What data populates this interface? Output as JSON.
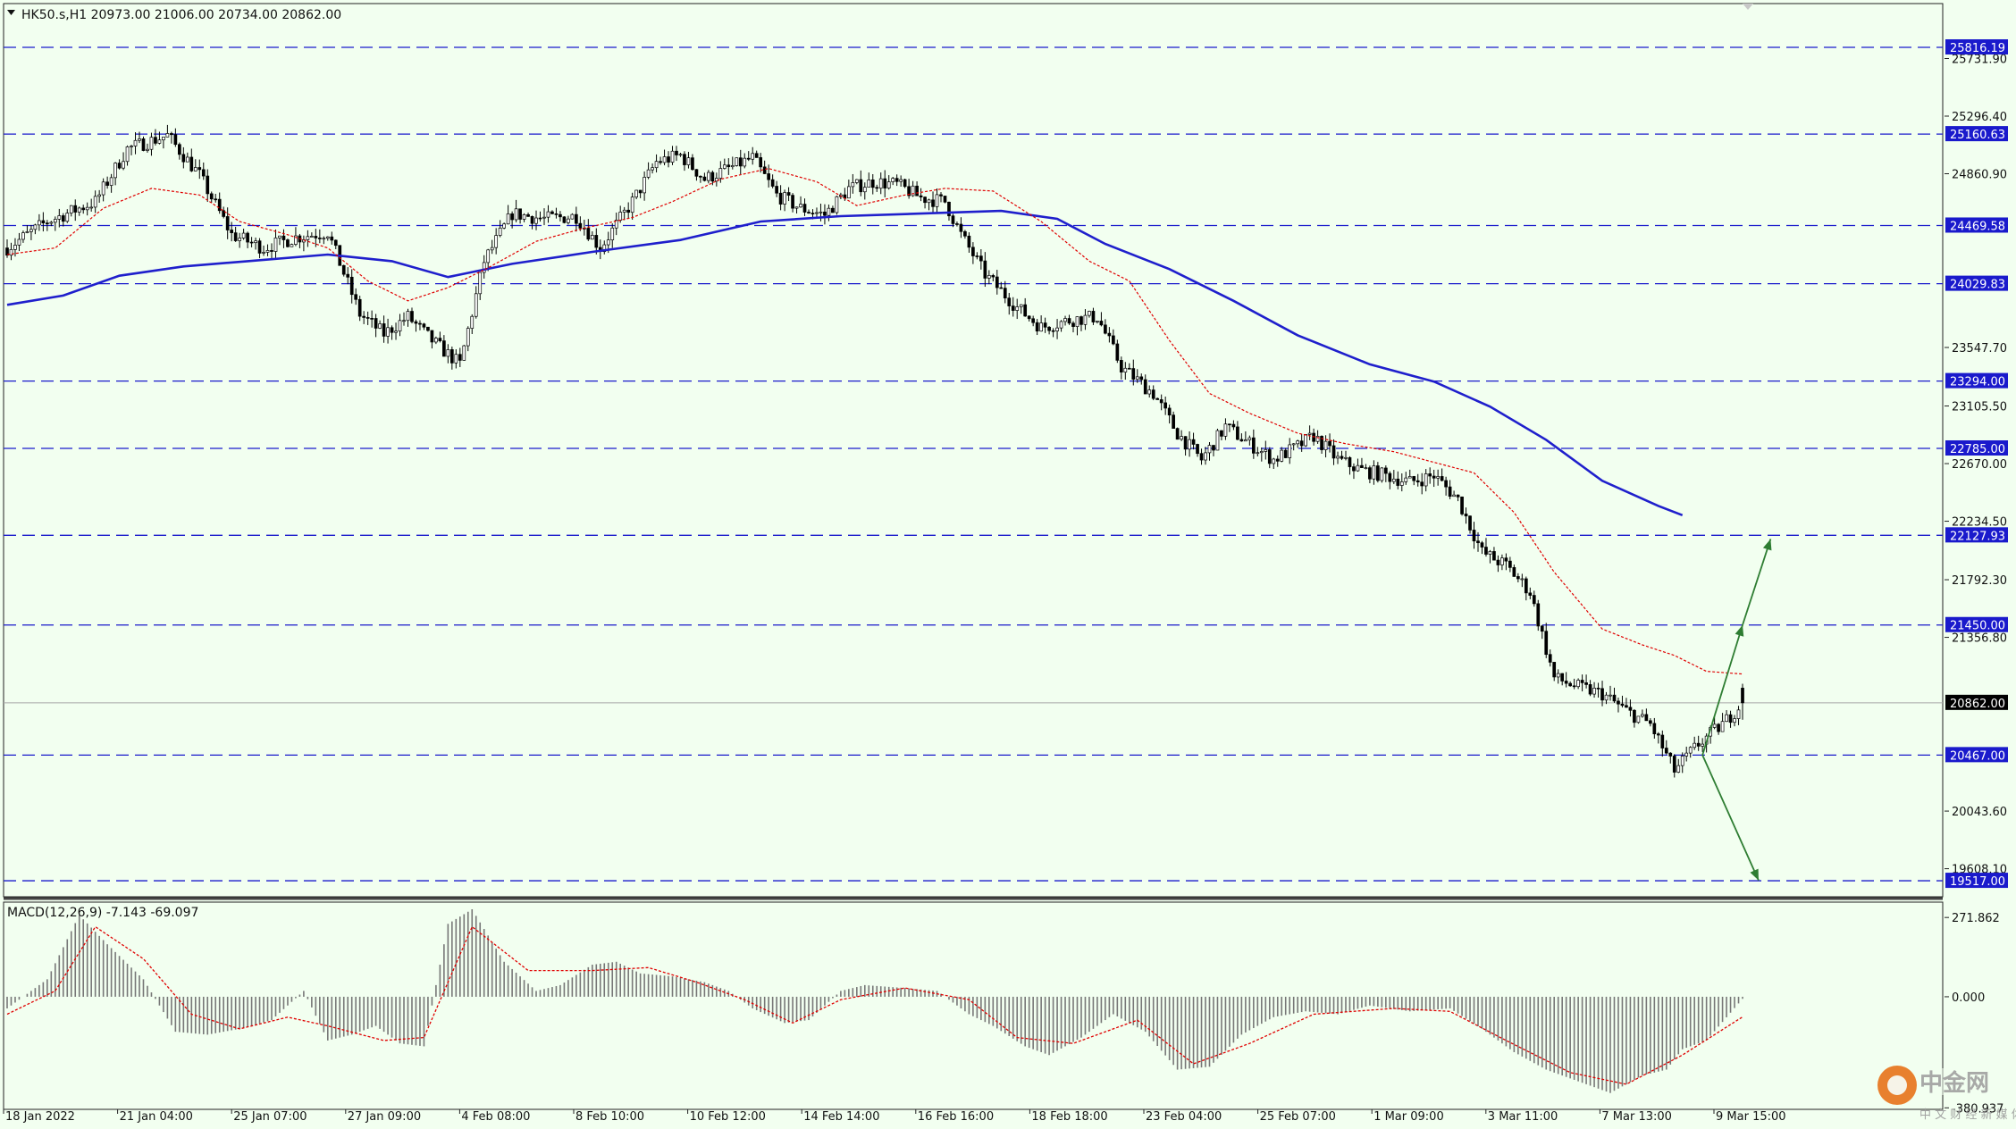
{
  "header": {
    "info": "HK50.s,H1  20973.00 21006.00 20734.00 20862.00",
    "macd": "MACD(12,26,9) -7.143 -69.097"
  },
  "colors": {
    "background": "#f2fff0",
    "ma_long": "#1f1fcc",
    "ma_short": "#e00000",
    "level_line": "#1a1acc",
    "arrow": "#2e7d32",
    "candle": "#000000",
    "histogram": "#777777"
  },
  "chart_data": {
    "type": "candlestick",
    "symbol": "HK50.s",
    "timeframe": "H1",
    "ohlc_last": {
      "open": 20973.0,
      "high": 21006.0,
      "low": 20734.0,
      "close": 20862.0
    },
    "ylim": [
      19450,
      26120
    ],
    "price_ticks": [
      25731.9,
      25296.4,
      24860.9,
      23547.7,
      23105.5,
      22670.0,
      22234.5,
      21792.3,
      21356.8,
      20043.6,
      19608.1
    ],
    "levels": [
      25816.19,
      25160.63,
      24469.58,
      24029.83,
      23294.0,
      22785.0,
      22127.93,
      21450.0,
      20467.0,
      19517.0
    ],
    "current_price": 20862.0,
    "x_labels": [
      "18 Jan 2022",
      "21 Jan 04:00",
      "25 Jan 07:00",
      "27 Jan 09:00",
      "4 Feb 08:00",
      "8 Feb 10:00",
      "10 Feb 12:00",
      "14 Feb 14:00",
      "16 Feb 16:00",
      "18 Feb 18:00",
      "23 Feb 04:00",
      "25 Feb 07:00",
      "1 Mar 09:00",
      "3 Mar 11:00",
      "7 Mar 13:00",
      "9 Mar 15:00"
    ],
    "price_path": [
      [
        0,
        24300
      ],
      [
        10,
        24500
      ],
      [
        22,
        24650
      ],
      [
        30,
        25050
      ],
      [
        40,
        25150
      ],
      [
        48,
        24850
      ],
      [
        56,
        24400
      ],
      [
        64,
        24300
      ],
      [
        72,
        24380
      ],
      [
        80,
        24420
      ],
      [
        88,
        23800
      ],
      [
        94,
        23650
      ],
      [
        100,
        23780
      ],
      [
        106,
        23600
      ],
      [
        113,
        23420
      ],
      [
        119,
        24200
      ],
      [
        126,
        24560
      ],
      [
        134,
        24520
      ],
      [
        142,
        24540
      ],
      [
        148,
        24300
      ],
      [
        156,
        24650
      ],
      [
        162,
        24950
      ],
      [
        168,
        25000
      ],
      [
        174,
        24820
      ],
      [
        180,
        24900
      ],
      [
        186,
        24980
      ],
      [
        192,
        24700
      ],
      [
        198,
        24600
      ],
      [
        204,
        24550
      ],
      [
        210,
        24750
      ],
      [
        216,
        24800
      ],
      [
        222,
        24780
      ],
      [
        228,
        24680
      ],
      [
        234,
        24650
      ],
      [
        238,
        24400
      ],
      [
        244,
        24100
      ],
      [
        252,
        23850
      ],
      [
        258,
        23700
      ],
      [
        266,
        23760
      ],
      [
        272,
        23780
      ],
      [
        278,
        23400
      ],
      [
        286,
        23200
      ],
      [
        292,
        22900
      ],
      [
        298,
        22700
      ],
      [
        304,
        22950
      ],
      [
        310,
        22820
      ],
      [
        316,
        22700
      ],
      [
        322,
        22800
      ],
      [
        326,
        22880
      ],
      [
        332,
        22700
      ],
      [
        338,
        22620
      ],
      [
        344,
        22580
      ],
      [
        350,
        22530
      ],
      [
        356,
        22580
      ],
      [
        362,
        22400
      ],
      [
        368,
        22000
      ],
      [
        374,
        21900
      ],
      [
        380,
        21700
      ],
      [
        386,
        21050
      ],
      [
        392,
        20980
      ],
      [
        398,
        20930
      ],
      [
        404,
        20800
      ],
      [
        410,
        20700
      ],
      [
        416,
        20350
      ],
      [
        422,
        20550
      ],
      [
        428,
        20700
      ],
      [
        433,
        20862
      ]
    ],
    "ma_short_path": [
      [
        0,
        24250
      ],
      [
        12,
        24300
      ],
      [
        24,
        24600
      ],
      [
        36,
        24750
      ],
      [
        48,
        24700
      ],
      [
        58,
        24500
      ],
      [
        70,
        24400
      ],
      [
        80,
        24300
      ],
      [
        90,
        24050
      ],
      [
        100,
        23900
      ],
      [
        110,
        24000
      ],
      [
        120,
        24150
      ],
      [
        132,
        24350
      ],
      [
        144,
        24450
      ],
      [
        156,
        24530
      ],
      [
        166,
        24650
      ],
      [
        178,
        24820
      ],
      [
        190,
        24900
      ],
      [
        202,
        24800
      ],
      [
        212,
        24620
      ],
      [
        224,
        24700
      ],
      [
        234,
        24750
      ],
      [
        246,
        24730
      ],
      [
        258,
        24500
      ],
      [
        270,
        24200
      ],
      [
        280,
        24050
      ],
      [
        290,
        23600
      ],
      [
        300,
        23200
      ],
      [
        310,
        23050
      ],
      [
        322,
        22900
      ],
      [
        334,
        22820
      ],
      [
        346,
        22760
      ],
      [
        356,
        22680
      ],
      [
        366,
        22600
      ],
      [
        376,
        22300
      ],
      [
        386,
        21850
      ],
      [
        398,
        21420
      ],
      [
        408,
        21300
      ],
      [
        416,
        21220
      ],
      [
        424,
        21100
      ],
      [
        433,
        21080
      ]
    ],
    "ma_long_path": [
      [
        0,
        23870
      ],
      [
        14,
        23940
      ],
      [
        28,
        24090
      ],
      [
        44,
        24160
      ],
      [
        60,
        24200
      ],
      [
        80,
        24250
      ],
      [
        96,
        24200
      ],
      [
        110,
        24080
      ],
      [
        126,
        24180
      ],
      [
        146,
        24270
      ],
      [
        168,
        24360
      ],
      [
        188,
        24500
      ],
      [
        208,
        24540
      ],
      [
        228,
        24560
      ],
      [
        248,
        24580
      ],
      [
        262,
        24520
      ],
      [
        274,
        24330
      ],
      [
        290,
        24140
      ],
      [
        306,
        23900
      ],
      [
        322,
        23640
      ],
      [
        340,
        23420
      ],
      [
        356,
        23290
      ],
      [
        370,
        23100
      ],
      [
        384,
        22850
      ],
      [
        398,
        22540
      ],
      [
        412,
        22350
      ],
      [
        418,
        22280
      ]
    ],
    "forecast_arrows": [
      {
        "direction": "up",
        "from": [
          423,
          20467
        ],
        "via": [
          433,
          21450
        ],
        "to": [
          440,
          22100
        ]
      },
      {
        "direction": "down",
        "from": [
          423,
          20467
        ],
        "to": [
          437,
          19520
        ]
      }
    ],
    "macd": {
      "params": "12,26,9",
      "main": -7.143,
      "signal": -69.097,
      "ylim": [
        -380,
        300
      ],
      "ticks": [
        271.862,
        0.0,
        -380.937
      ],
      "hist_path": [
        [
          0,
          -40
        ],
        [
          10,
          60
        ],
        [
          18,
          280
        ],
        [
          25,
          180
        ],
        [
          34,
          60
        ],
        [
          42,
          -120
        ],
        [
          50,
          -130
        ],
        [
          58,
          -110
        ],
        [
          66,
          -80
        ],
        [
          74,
          20
        ],
        [
          80,
          -150
        ],
        [
          86,
          -130
        ],
        [
          92,
          -100
        ],
        [
          98,
          -160
        ],
        [
          104,
          -170
        ],
        [
          110,
          250
        ],
        [
          116,
          300
        ],
        [
          124,
          120
        ],
        [
          132,
          20
        ],
        [
          138,
          40
        ],
        [
          146,
          110
        ],
        [
          152,
          120
        ],
        [
          158,
          80
        ],
        [
          166,
          70
        ],
        [
          174,
          50
        ],
        [
          180,
          20
        ],
        [
          186,
          -40
        ],
        [
          194,
          -90
        ],
        [
          200,
          -80
        ],
        [
          208,
          20
        ],
        [
          214,
          40
        ],
        [
          224,
          30
        ],
        [
          232,
          20
        ],
        [
          240,
          -60
        ],
        [
          246,
          -100
        ],
        [
          254,
          -170
        ],
        [
          260,
          -200
        ],
        [
          268,
          -140
        ],
        [
          276,
          -60
        ],
        [
          284,
          -120
        ],
        [
          292,
          -250
        ],
        [
          300,
          -240
        ],
        [
          308,
          -130
        ],
        [
          316,
          -70
        ],
        [
          324,
          -50
        ],
        [
          332,
          -60
        ],
        [
          340,
          -30
        ],
        [
          350,
          -50
        ],
        [
          360,
          -40
        ],
        [
          368,
          -110
        ],
        [
          376,
          -190
        ],
        [
          384,
          -250
        ],
        [
          392,
          -290
        ],
        [
          400,
          -330
        ],
        [
          408,
          -270
        ],
        [
          414,
          -250
        ],
        [
          418,
          -180
        ],
        [
          424,
          -150
        ],
        [
          433,
          -7
        ]
      ],
      "signal_path": [
        [
          0,
          -60
        ],
        [
          12,
          20
        ],
        [
          22,
          240
        ],
        [
          34,
          130
        ],
        [
          46,
          -60
        ],
        [
          58,
          -110
        ],
        [
          70,
          -70
        ],
        [
          80,
          -100
        ],
        [
          94,
          -150
        ],
        [
          104,
          -140
        ],
        [
          116,
          240
        ],
        [
          130,
          90
        ],
        [
          146,
          90
        ],
        [
          160,
          100
        ],
        [
          172,
          50
        ],
        [
          184,
          -10
        ],
        [
          196,
          -90
        ],
        [
          208,
          -10
        ],
        [
          224,
          30
        ],
        [
          240,
          -10
        ],
        [
          252,
          -140
        ],
        [
          266,
          -160
        ],
        [
          282,
          -80
        ],
        [
          296,
          -230
        ],
        [
          310,
          -160
        ],
        [
          326,
          -60
        ],
        [
          346,
          -40
        ],
        [
          360,
          -50
        ],
        [
          374,
          -150
        ],
        [
          390,
          -260
        ],
        [
          404,
          -300
        ],
        [
          418,
          -200
        ],
        [
          433,
          -69
        ]
      ]
    }
  }
}
